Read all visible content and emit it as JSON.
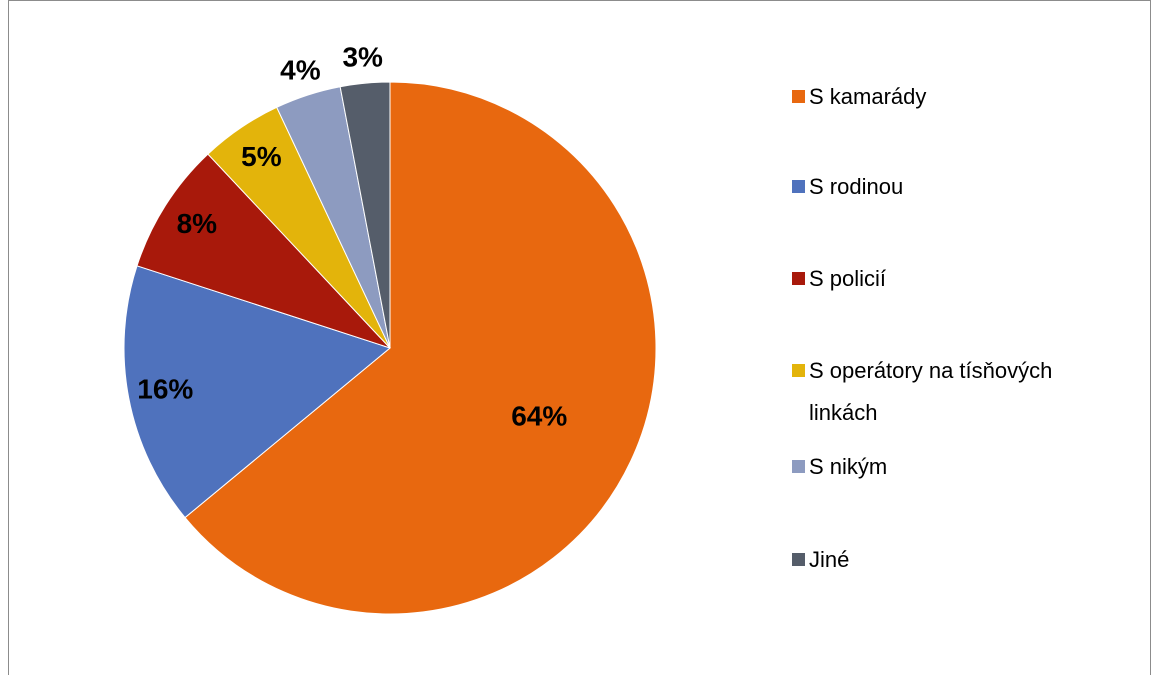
{
  "chart_data": {
    "type": "pie",
    "categories": [
      "S kamarády",
      "S rodinou",
      "S policií",
      "S operátory na tísňových linkách",
      "S nikým",
      "Jiné"
    ],
    "values": [
      64,
      16,
      8,
      5,
      4,
      3
    ],
    "value_labels": [
      "64%",
      "16%",
      "8%",
      "5%",
      "4%",
      "3%"
    ],
    "colors": [
      "#e8680f",
      "#4f72bd",
      "#a8190b",
      "#e3b40b",
      "#8d9bc0",
      "#555d6a"
    ],
    "legend": "right"
  }
}
